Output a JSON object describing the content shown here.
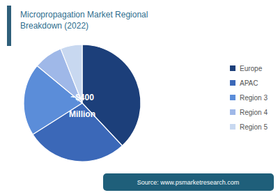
{
  "chart_data": {
    "type": "pie",
    "title": "Micropropagation Market Regional\nBreakdown (2022)",
    "categories": [
      "Europe",
      "APAC",
      "Region 3",
      "Region 4",
      "Region 5"
    ],
    "values": [
      38,
      28,
      20,
      8,
      6
    ],
    "colors": [
      "#1c3f7a",
      "#3b68b8",
      "#5b8dd9",
      "#9fb8e8",
      "#c8d8f0"
    ],
    "annotations": [
      "~$400",
      "Million",
      "Source: www.psmarketresearch.com"
    ],
    "legend": "right"
  }
}
